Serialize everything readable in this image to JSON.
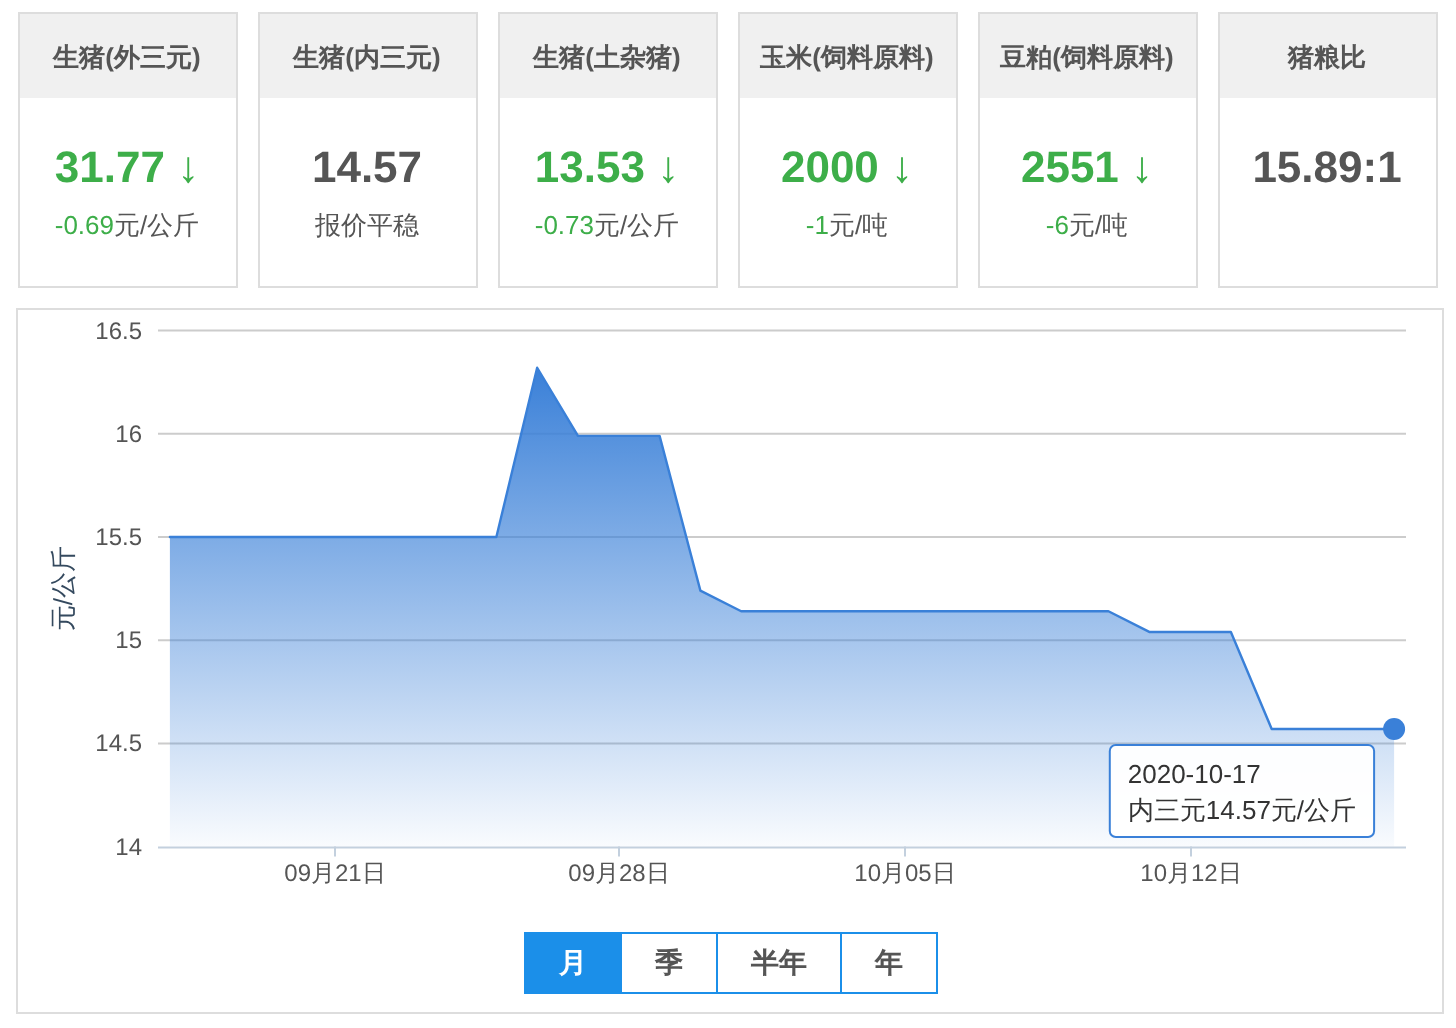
{
  "chart_data": [
    {
      "type": "other",
      "title": "生猪(外三元)",
      "annotations": [
        "31.77 ↓",
        "-0.69",
        "元/公斤"
      ],
      "colors": [
        "#3dae49",
        "#3dae49",
        "#555555"
      ]
    },
    {
      "type": "other",
      "title": "生猪(内三元)",
      "annotations": [
        "14.57",
        "报价平稳"
      ],
      "colors": [
        "#555555",
        "#555555"
      ]
    },
    {
      "type": "other",
      "title": "生猪(土杂猪)",
      "annotations": [
        "13.53 ↓",
        "-0.73",
        "元/公斤"
      ],
      "colors": [
        "#3dae49",
        "#3dae49",
        "#555555"
      ]
    },
    {
      "type": "other",
      "title": "玉米(饲料原料)",
      "annotations": [
        "2000 ↓",
        "-1",
        "元/吨"
      ],
      "colors": [
        "#3dae49",
        "#3dae49",
        "#555555"
      ]
    },
    {
      "type": "other",
      "title": "豆粕(饲料原料)",
      "annotations": [
        "2551 ↓",
        "-6",
        "元/吨"
      ],
      "colors": [
        "#3dae49",
        "#3dae49",
        "#555555"
      ]
    },
    {
      "type": "other",
      "title": "猪粮比",
      "annotations": [
        "15.89:1"
      ],
      "colors": [
        "#555555"
      ]
    },
    {
      "type": "area",
      "ylabel": "元/公斤",
      "x": [
        "2020-09-17",
        "2020-09-25",
        "2020-09-26",
        "2020-09-27",
        "2020-09-29",
        "2020-09-30",
        "2020-10-01",
        "2020-10-10",
        "2020-10-11",
        "2020-10-13",
        "2020-10-14",
        "2020-10-17"
      ],
      "values": [
        15.5,
        15.5,
        16.32,
        15.99,
        15.99,
        15.24,
        15.14,
        15.14,
        15.04,
        15.04,
        14.57,
        14.57
      ],
      "color": "#3a80d8",
      "xlim": [
        "2020-09-16T17:00",
        "2020-10-17T07:00"
      ],
      "xticks": [
        {
          "value": "2020-09-21",
          "label": "09月21日"
        },
        {
          "value": "2020-09-28",
          "label": "09月28日"
        },
        {
          "value": "2020-10-05",
          "label": "10月05日"
        },
        {
          "value": "2020-10-12",
          "label": "10月12日"
        }
      ],
      "ylim": [
        14,
        16.5
      ],
      "yticks": [
        14,
        14.5,
        15,
        15.5,
        16,
        16.5
      ],
      "grid": "y",
      "annotations": [
        {
          "text": "2020-10-17\n内三元14.57元/公斤",
          "x": "2020-10-17",
          "y": 14.57
        }
      ]
    },
    {
      "type": "other",
      "annotations": [
        "月",
        "季",
        "半年",
        "年"
      ],
      "colors": [
        "#1b8fe9",
        "#ffffff",
        "#ffffff",
        "#ffffff"
      ]
    }
  ]
}
